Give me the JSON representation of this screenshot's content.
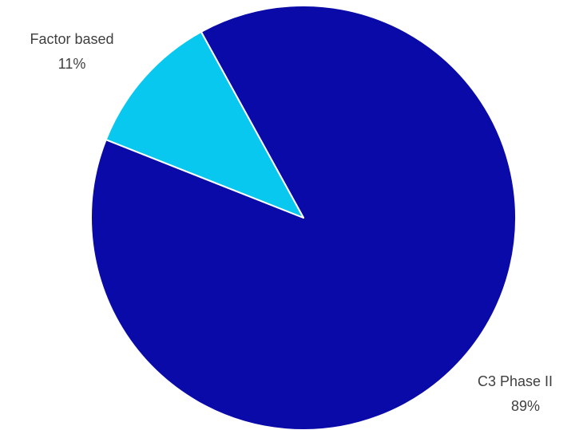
{
  "chart_data": {
    "type": "pie",
    "title": "",
    "slices": [
      {
        "label": "C3 Phase II",
        "value": 89,
        "value_label": "89%",
        "color": "#0A0AA8"
      },
      {
        "label": "Factor based",
        "value": 11,
        "value_label": "11%",
        "color": "#08C8F0"
      }
    ],
    "legend": "none",
    "slice_border_color": "#FFFFFF"
  }
}
